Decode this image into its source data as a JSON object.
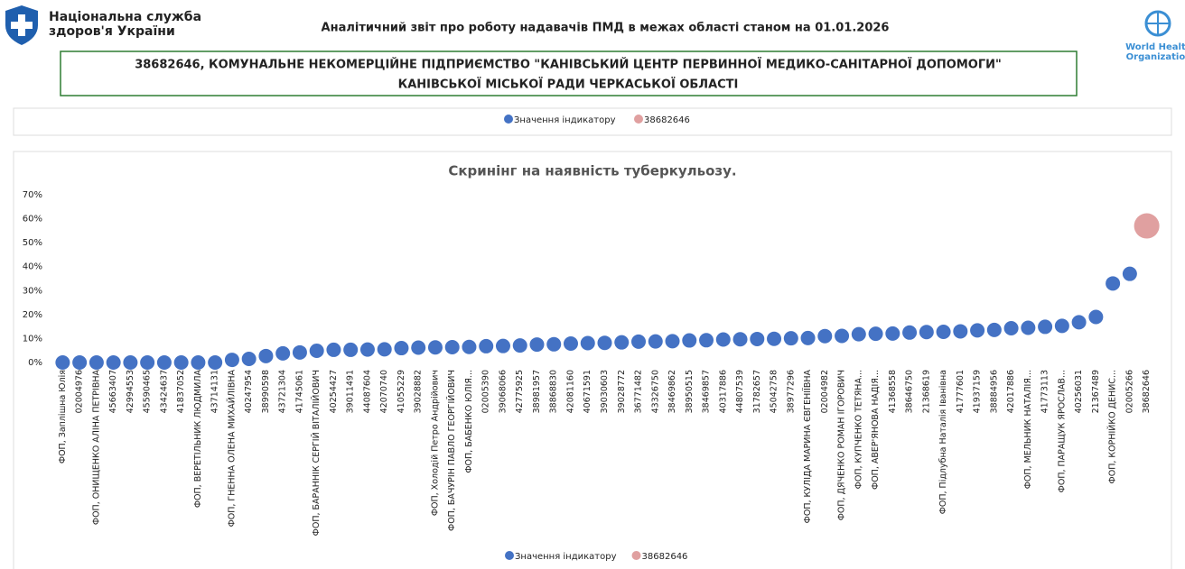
{
  "header": {
    "org_line1": "Національна служба",
    "org_line2": "здоров'я України",
    "report_title": "Аналітичний звіт про роботу надавачів ПМД в межах області станом на 01.01.2026",
    "provider_line1": "38682646, КОМУНАЛЬНЕ НЕКОМЕРЦІЙНЕ ПІДПРИЄМСТВО \"КАНІВСЬКИЙ ЦЕНТР ПЕРВИННОЇ МЕДИКО-САНІТАРНОЇ ДОПОМОГИ\"",
    "provider_line2": "КАНІВСЬКОЇ МІСЬКОЇ РАДИ ЧЕРКАСЬКОЇ ОБЛАСТІ",
    "who_line1": "World Health",
    "who_line2": "Organization"
  },
  "previous_chart_legend": [
    "Значення індикатору",
    "38682646"
  ],
  "chart_data": {
    "type": "scatter",
    "title": "Скринінг на наявність туберкульозу.",
    "categories": [
      "ФОП, Заплішна Юлія",
      "02004976",
      "ФОП, ОНИЩЕНКО АЛІНА ПЕТРІВНА",
      "45663407",
      "42994553",
      "45590465",
      "43424637",
      "41837052",
      "ФОП, ВЕРЕТІЛЬНИК ЛЮДМИЛА",
      "43714131",
      "ФОП, ГНЕННА ОЛЕНА МИХАЙЛІВНА",
      "40247954",
      "38990598",
      "43721304",
      "41745061",
      "ФОП, БАРАННІК СЕРГІЙ ВІТАЛІЙОВИЧ",
      "40254427",
      "39011491",
      "44087604",
      "42070740",
      "41055229",
      "39028882",
      "ФОП, Холодій Петро Андрійович",
      "ФОП, БАЧУРІН ПАВЛО ГЕОРГІЙОВИЧ",
      "ФОП, БАБЕНКО ЮЛІЯ...",
      "02005390",
      "39068066",
      "42775925",
      "38981957",
      "38868830",
      "42081160",
      "40671591",
      "39030603",
      "39028772",
      "36771482",
      "43326750",
      "38469862",
      "38950515",
      "38469857",
      "40317886",
      "44807539",
      "31782657",
      "45042758",
      "38977296",
      "ФОП, КУЛІДА МАРИНА ЄВГЕНІЇВНА",
      "02004982",
      "ФОП, ДЯЧЕНКО РОМАН ІГОРОВИЧ",
      "ФОП, КУПЧЕНКО ТЕТЯНА...",
      "ФОП, АВЕР'ЯНОВА НАДІЯ...",
      "41368558",
      "38646750",
      "21368619",
      "ФОП, Підлубна Наталія Іванівна",
      "41777601",
      "41937159",
      "38884956",
      "42017886",
      "ФОП, МЕЛЬНИК НАТАЛІЯ...",
      "41773113",
      "ФОП, ПАРАЩУК ЯРОСЛАВ...",
      "40256031",
      "21367489",
      "ФОП, КОРНІЙКО ДЕНИС...",
      "02005266",
      "38682646"
    ],
    "series": [
      {
        "name": "Значення індикатору",
        "color": "#4472c4",
        "values": [
          0,
          0,
          0,
          0,
          0,
          0,
          0,
          0,
          0,
          0,
          1.1,
          1.5,
          2.7,
          3.8,
          4.2,
          4.9,
          5.3,
          5.3,
          5.4,
          5.5,
          6,
          6.2,
          6.3,
          6.4,
          6.5,
          6.8,
          6.9,
          7.1,
          7.5,
          7.6,
          7.9,
          8.1,
          8.2,
          8.4,
          8.7,
          8.8,
          8.9,
          9.2,
          9.3,
          9.6,
          9.7,
          9.8,
          9.9,
          10.1,
          10.2,
          11,
          11.1,
          11.8,
          12,
          12.1,
          12.5,
          12.7,
          12.8,
          13,
          13.4,
          13.6,
          14.3,
          14.5,
          14.9,
          15.3,
          16.8,
          19,
          33,
          37,
          null
        ]
      },
      {
        "name": "38682646",
        "color": "#e0a0a0",
        "values": [
          null,
          null,
          null,
          null,
          null,
          null,
          null,
          null,
          null,
          null,
          null,
          null,
          null,
          null,
          null,
          null,
          null,
          null,
          null,
          null,
          null,
          null,
          null,
          null,
          null,
          null,
          null,
          null,
          null,
          null,
          null,
          null,
          null,
          null,
          null,
          null,
          null,
          null,
          null,
          null,
          null,
          null,
          null,
          null,
          null,
          null,
          null,
          null,
          null,
          null,
          null,
          null,
          null,
          null,
          null,
          null,
          null,
          null,
          null,
          null,
          null,
          null,
          null,
          null,
          57
        ]
      }
    ],
    "ylim": [
      0,
      70
    ],
    "yticks": [
      {
        "value": 0,
        "label": "0%"
      },
      {
        "value": 10,
        "label": "10%"
      },
      {
        "value": 20,
        "label": "20%"
      },
      {
        "value": 30,
        "label": "30%"
      },
      {
        "value": 40,
        "label": "40%"
      },
      {
        "value": 50,
        "label": "50%"
      },
      {
        "value": 60,
        "label": "60%"
      },
      {
        "value": 70,
        "label": "70%"
      }
    ],
    "grid": false,
    "legend": "bottom"
  }
}
